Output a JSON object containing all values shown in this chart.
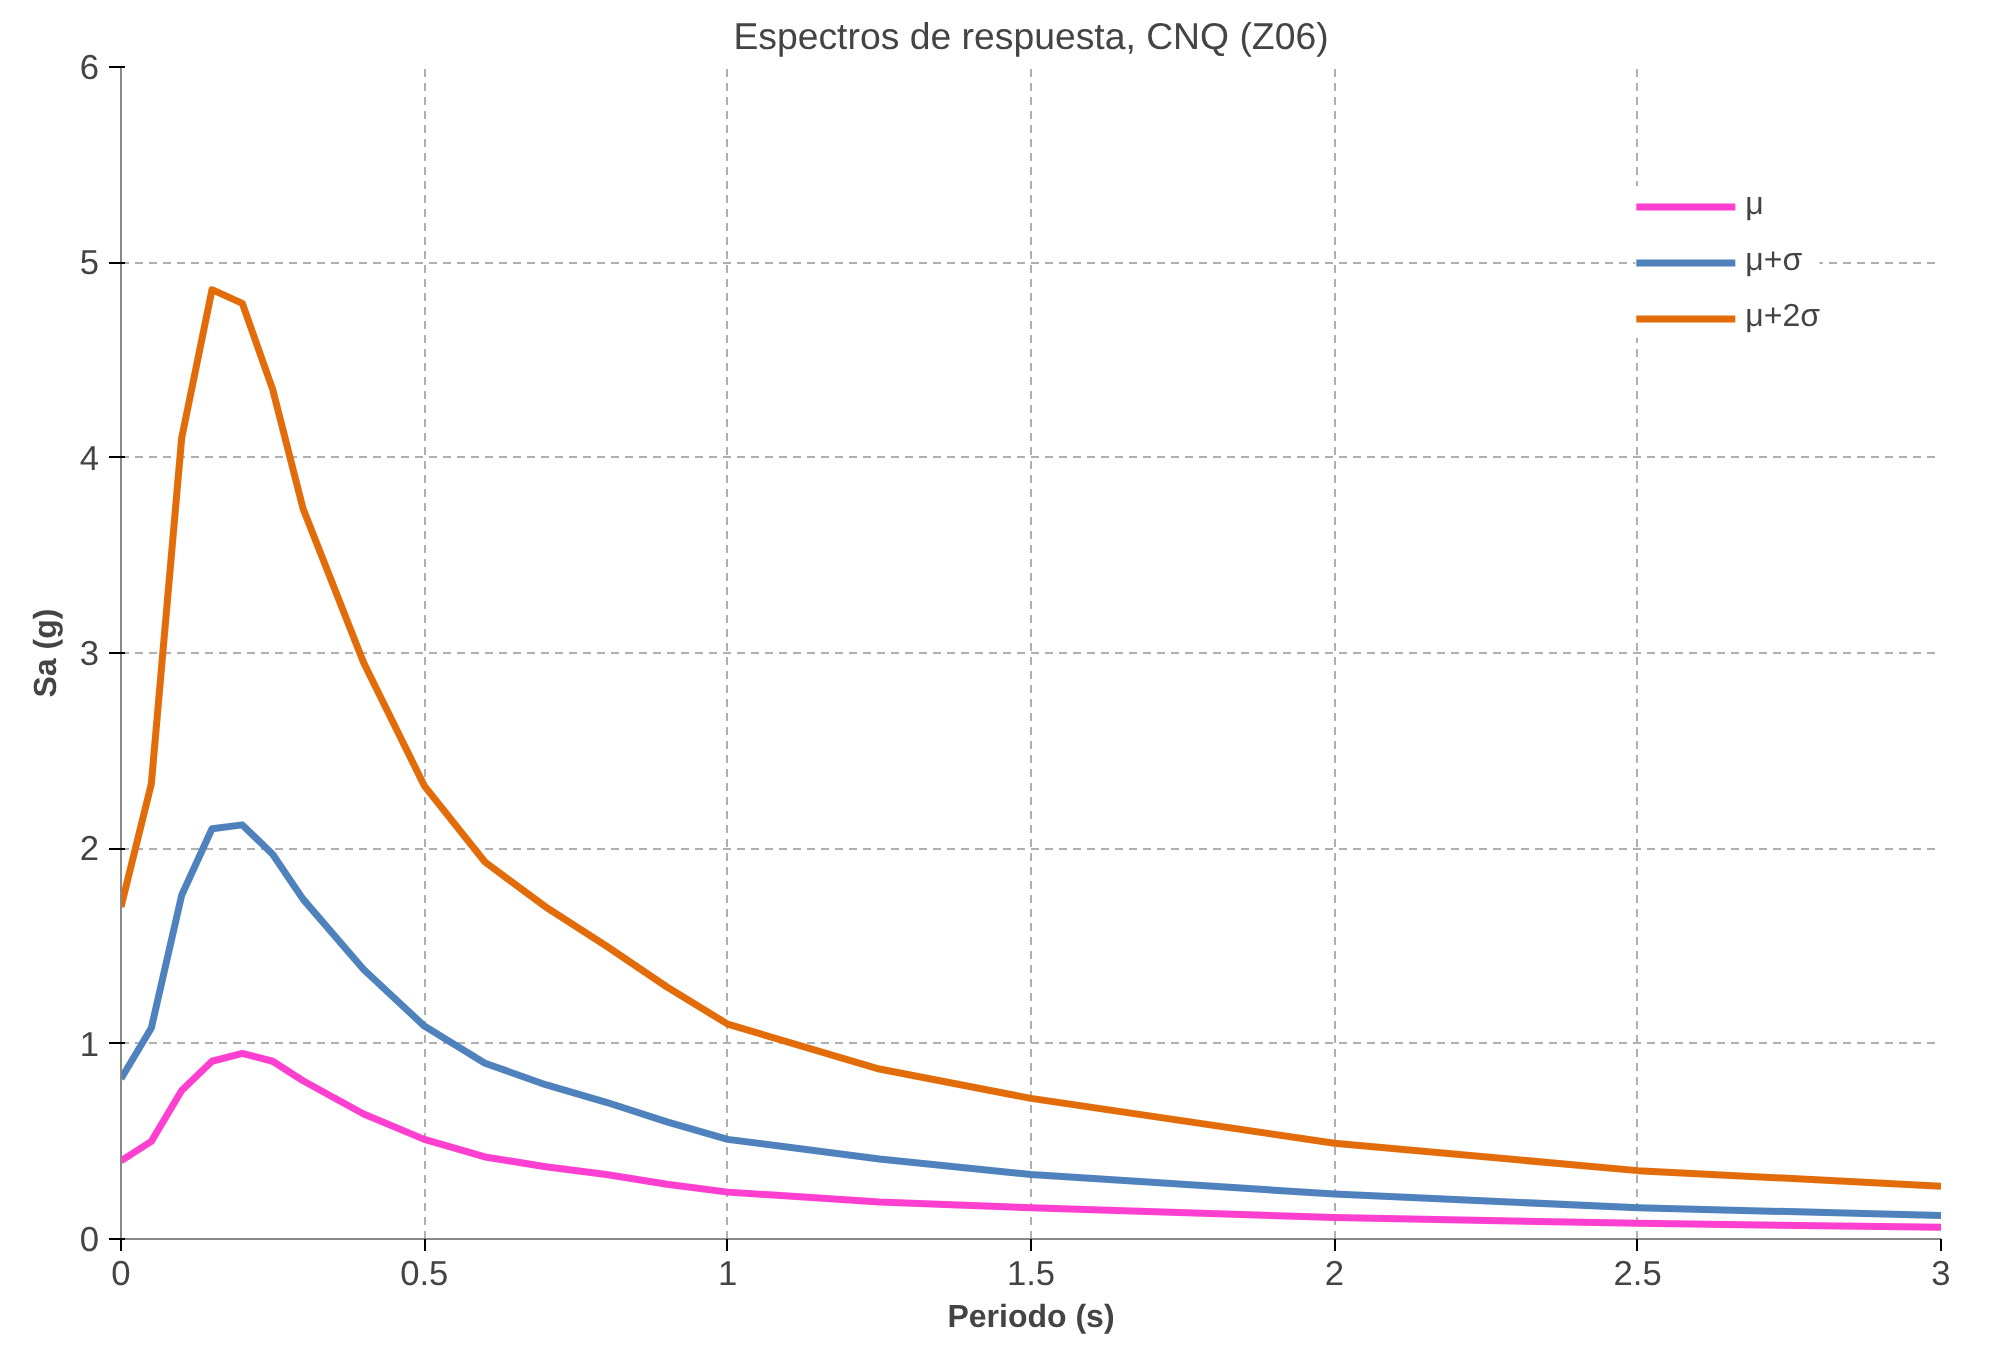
{
  "chart_data": {
    "type": "line",
    "title": "Espectros de respuesta, CNQ (Z06)",
    "xlabel": "Periodo (s)",
    "ylabel": "Sa (g)",
    "x": [
      0,
      0.05,
      0.1,
      0.15,
      0.2,
      0.25,
      0.3,
      0.4,
      0.5,
      0.6,
      0.7,
      0.8,
      0.9,
      1.0,
      1.25,
      1.5,
      2.0,
      2.5,
      3.0
    ],
    "series": [
      {
        "name": "μ",
        "color": "#ff3fcf",
        "values": [
          0.4,
          0.5,
          0.76,
          0.91,
          0.95,
          0.91,
          0.81,
          0.64,
          0.51,
          0.42,
          0.37,
          0.33,
          0.28,
          0.24,
          0.19,
          0.16,
          0.11,
          0.08,
          0.06
        ]
      },
      {
        "name": "μ+σ",
        "color": "#4f81bd",
        "values": [
          0.82,
          1.08,
          1.76,
          2.1,
          2.12,
          1.97,
          1.74,
          1.38,
          1.09,
          0.9,
          0.79,
          0.7,
          0.6,
          0.51,
          0.41,
          0.33,
          0.23,
          0.16,
          0.12
        ]
      },
      {
        "name": "μ+2σ",
        "color": "#e36c0a",
        "values": [
          1.7,
          2.33,
          4.1,
          4.86,
          4.79,
          4.35,
          3.74,
          2.95,
          2.32,
          1.93,
          1.7,
          1.5,
          1.29,
          1.1,
          0.87,
          0.72,
          0.49,
          0.35,
          0.27
        ]
      }
    ],
    "xlim": [
      0,
      3
    ],
    "xticks": [
      0,
      0.5,
      1,
      1.5,
      2,
      2.5,
      3
    ],
    "ylim": [
      0,
      6
    ],
    "yticks": [
      0,
      1,
      2,
      3,
      4,
      5,
      6
    ],
    "grid": true,
    "legend": "top right",
    "marker": "none",
    "line_style": "solid"
  }
}
